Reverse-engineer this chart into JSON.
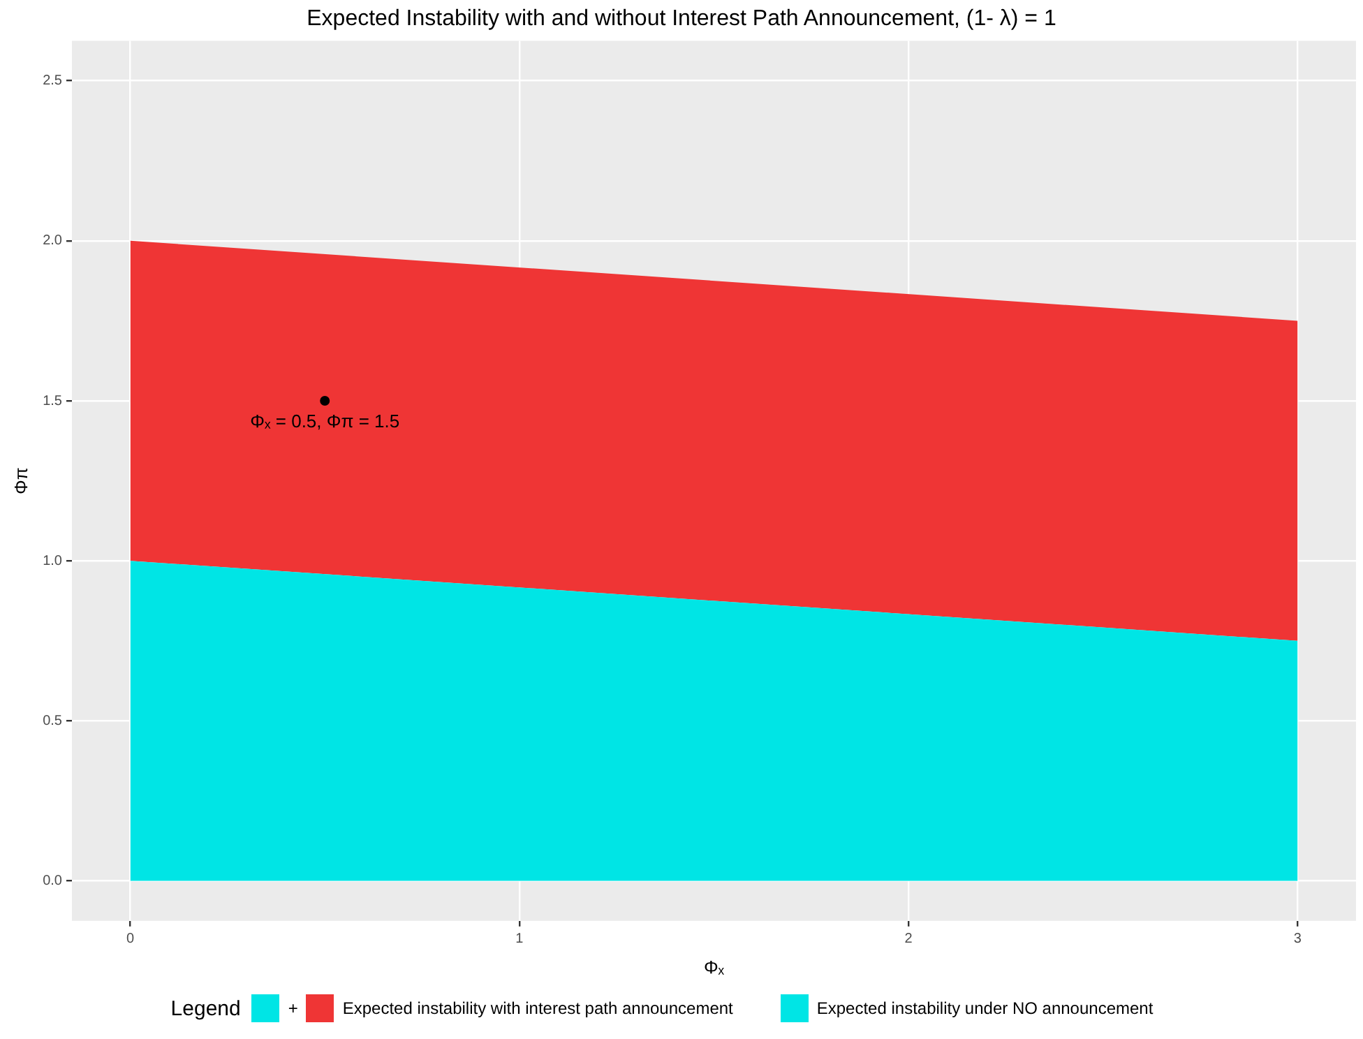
{
  "chart_data": {
    "type": "area",
    "title": "Expected Instability with and without Interest Path Announcement, (1- λ) = 1",
    "xlabel": "Φₓ",
    "ylabel": "Φπ",
    "legend_title": "Legend",
    "x": [
      0,
      3
    ],
    "stacked": true,
    "series": [
      {
        "name": "Expected instability under NO announcement",
        "color": "#00e5e5",
        "values": [
          1,
          0.75
        ]
      },
      {
        "name": "Expected instability with interest path announcement",
        "color": "#ef3535",
        "values": [
          1,
          1
        ]
      },
      {
        "type": "scatter",
        "color": "#000000",
        "x": [
          0.5
        ],
        "values": [
          1.5
        ]
      }
    ],
    "xlim": [
      -0.15,
      3.15
    ],
    "xticks": [
      0,
      1,
      2,
      3
    ],
    "ylim": [
      -0.125,
      2.625
    ],
    "yticks": [
      {
        "value": 0,
        "label": "0.0"
      },
      {
        "value": 0.5,
        "label": "0.5"
      },
      {
        "value": 1,
        "label": "1.0"
      },
      {
        "value": 1.5,
        "label": "1.5"
      },
      {
        "value": 2,
        "label": "2.0"
      },
      {
        "value": 2.5,
        "label": "2.5"
      }
    ],
    "annotations": [
      {
        "text": "Φₓ = 0.5, Φπ = 1.5",
        "x": 0.5,
        "y": 1.5
      },
      "+"
    ],
    "grid": true,
    "legend": "bottom"
  }
}
